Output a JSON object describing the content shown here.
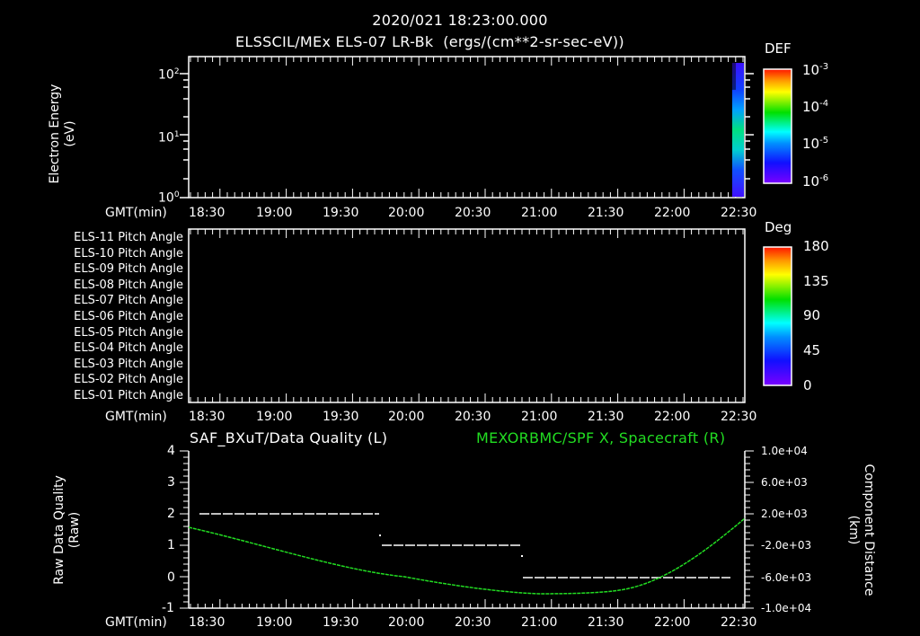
{
  "header": {
    "timestamp": "2020/021 18:23:00.000",
    "panel1_title": "ELSSCIL/MEx ELS-07 LR-Bk  (ergs/(cm**2-sr-sec-eV))"
  },
  "panel1": {
    "ylabel_line1": "Electron Energy",
    "ylabel_line2": "(eV)",
    "yticks": [
      "10",
      "10",
      "10"
    ],
    "yticks_exp": [
      "2",
      "1",
      "0"
    ],
    "colorbar": {
      "title": "DEF",
      "labels": [
        "10",
        "10",
        "10",
        "10"
      ],
      "exps": [
        "-3",
        "-4",
        "-5",
        "-6"
      ]
    }
  },
  "panel2": {
    "rows": [
      "ELS-11 Pitch Angle",
      "ELS-10 Pitch Angle",
      "ELS-09 Pitch Angle",
      "ELS-08 Pitch Angle",
      "ELS-07 Pitch Angle",
      "ELS-06 Pitch Angle",
      "ELS-05 Pitch Angle",
      "ELS-04 Pitch Angle",
      "ELS-03 Pitch Angle",
      "ELS-02 Pitch Angle",
      "ELS-01 Pitch Angle"
    ],
    "colorbar": {
      "title": "Deg",
      "labels": [
        "180",
        "135",
        "90",
        "45",
        "0"
      ]
    }
  },
  "panel3": {
    "left_title": "SAF_BXuT/Data Quality (L)",
    "right_title": "MEXORBMC/SPF X, Spacecraft (R)",
    "ylabel_left_line1": "Raw Data Quality",
    "ylabel_left_line2": "(Raw)",
    "ylabel_right_line1": "Component Distance",
    "ylabel_right_line2": "(km)",
    "yticks_left": [
      "4",
      "3",
      "2",
      "1",
      "0",
      "-1"
    ],
    "yticks_right": [
      "1.0e+04",
      "6.0e+03",
      "2.0e+03",
      "-2.0e+03",
      "-6.0e+03",
      "-1.0e+04"
    ]
  },
  "time_axis": {
    "label": "GMT(min)",
    "ticks": [
      "18:30",
      "19:00",
      "19:30",
      "20:00",
      "20:30",
      "21:00",
      "21:30",
      "22:00",
      "22:30"
    ]
  },
  "colors": {
    "background": "#000000",
    "foreground": "#ffffff",
    "series_right": "#22dd22"
  },
  "chart_data": [
    {
      "type": "heatmap",
      "title": "ELSSCIL/MEx ELS-07 LR-Bk (ergs/(cm**2-sr-sec-eV))",
      "xlabel": "GMT(min)",
      "ylabel": "Electron Energy (eV)",
      "yscale": "log",
      "ylim": [
        1,
        200
      ],
      "x_ticks": [
        "18:30",
        "19:00",
        "19:30",
        "20:00",
        "20:30",
        "21:00",
        "21:30",
        "22:00",
        "22:30"
      ],
      "colorbar": {
        "label": "DEF",
        "scale": "log",
        "range": [
          1e-06,
          0.001
        ]
      },
      "notes": "Data present only in final column near 22:30; peak ~1e-5 to 1e-4 between ~3-10 eV"
    },
    {
      "type": "heatmap",
      "title": "ELS Pitch Angle",
      "xlabel": "GMT(min)",
      "rows": [
        "ELS-11",
        "ELS-10",
        "ELS-09",
        "ELS-08",
        "ELS-07",
        "ELS-06",
        "ELS-05",
        "ELS-04",
        "ELS-03",
        "ELS-02",
        "ELS-01"
      ],
      "colorbar": {
        "label": "Deg",
        "range": [
          0,
          180
        ],
        "ticks": [
          0,
          45,
          90,
          135,
          180
        ]
      },
      "notes": "No data shown"
    },
    {
      "type": "line",
      "title": "SAF_BXuT/Data Quality (L) ; MEXORBMC/SPF X, Spacecraft (R)",
      "xlabel": "GMT(min)",
      "x_ticks": [
        "18:30",
        "19:00",
        "19:30",
        "20:00",
        "20:30",
        "21:00",
        "21:30",
        "22:00",
        "22:30"
      ],
      "series": [
        {
          "name": "Data Quality (L)",
          "axis": "left",
          "color": "#ffffff",
          "x": [
            "18:35",
            "19:50",
            "19:52",
            "20:50",
            "20:52",
            "22:30"
          ],
          "values": [
            2,
            2,
            1,
            1,
            0,
            0
          ]
        },
        {
          "name": "SPF X Spacecraft (R)",
          "axis": "right",
          "color": "#22dd22",
          "x": [
            "18:23",
            "18:30",
            "19:00",
            "19:30",
            "20:00",
            "20:30",
            "21:00",
            "21:15",
            "21:30",
            "22:00",
            "22:15",
            "22:30",
            "22:35"
          ],
          "values": [
            600,
            0,
            -1800,
            -3700,
            -5500,
            -7000,
            -7900,
            -8000,
            -7700,
            -5800,
            -3400,
            300,
            1800
          ]
        }
      ],
      "ylim_left": [
        -1,
        4
      ],
      "ylim_right": [
        -10000,
        10000
      ]
    }
  ]
}
